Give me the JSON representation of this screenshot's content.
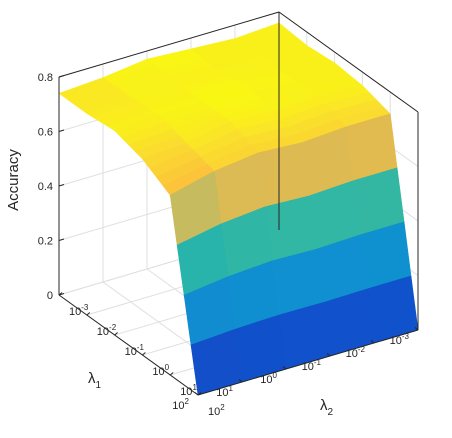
{
  "chart_data": {
    "type": "surface",
    "title": "",
    "zlabel": "Accuracy",
    "xlabel": {
      "symbol": "λ",
      "subscript": "1"
    },
    "ylabel": {
      "symbol": "λ",
      "subscript": "2"
    },
    "x_scale": "log",
    "y_scale": "log",
    "x": [
      0.001,
      0.01,
      0.1,
      1,
      10,
      100
    ],
    "y": [
      0.001,
      0.01,
      0.1,
      1,
      10,
      100
    ],
    "xlim": [
      0.001,
      100
    ],
    "ylim": [
      0.001,
      100
    ],
    "zlim": [
      0,
      0.8
    ],
    "x_ticks": [
      {
        "base": "10",
        "exp": "-3"
      },
      {
        "base": "10",
        "exp": "-2"
      },
      {
        "base": "10",
        "exp": "-1"
      },
      {
        "base": "10",
        "exp": "0"
      },
      {
        "base": "10",
        "exp": "1"
      },
      {
        "base": "10",
        "exp": "2"
      }
    ],
    "y_ticks": [
      {
        "base": "10",
        "exp": "-3"
      },
      {
        "base": "10",
        "exp": "-2"
      },
      {
        "base": "10",
        "exp": "-1"
      },
      {
        "base": "10",
        "exp": "0"
      },
      {
        "base": "10",
        "exp": "1"
      },
      {
        "base": "10",
        "exp": "2"
      }
    ],
    "z_ticks": [
      "0",
      "0.2",
      "0.4",
      "0.6",
      "0.8"
    ],
    "z": [
      [
        0.76,
        0.75,
        0.76,
        0.75,
        0.72,
        0.0
      ],
      [
        0.75,
        0.76,
        0.75,
        0.76,
        0.72,
        0.0
      ],
      [
        0.76,
        0.75,
        0.77,
        0.75,
        0.71,
        0.0
      ],
      [
        0.77,
        0.76,
        0.76,
        0.76,
        0.72,
        0.0
      ],
      [
        0.75,
        0.75,
        0.76,
        0.73,
        0.7,
        0.0
      ],
      [
        0.74,
        0.74,
        0.75,
        0.72,
        0.66,
        0.0
      ]
    ],
    "grid": true,
    "colormap": "parula"
  }
}
